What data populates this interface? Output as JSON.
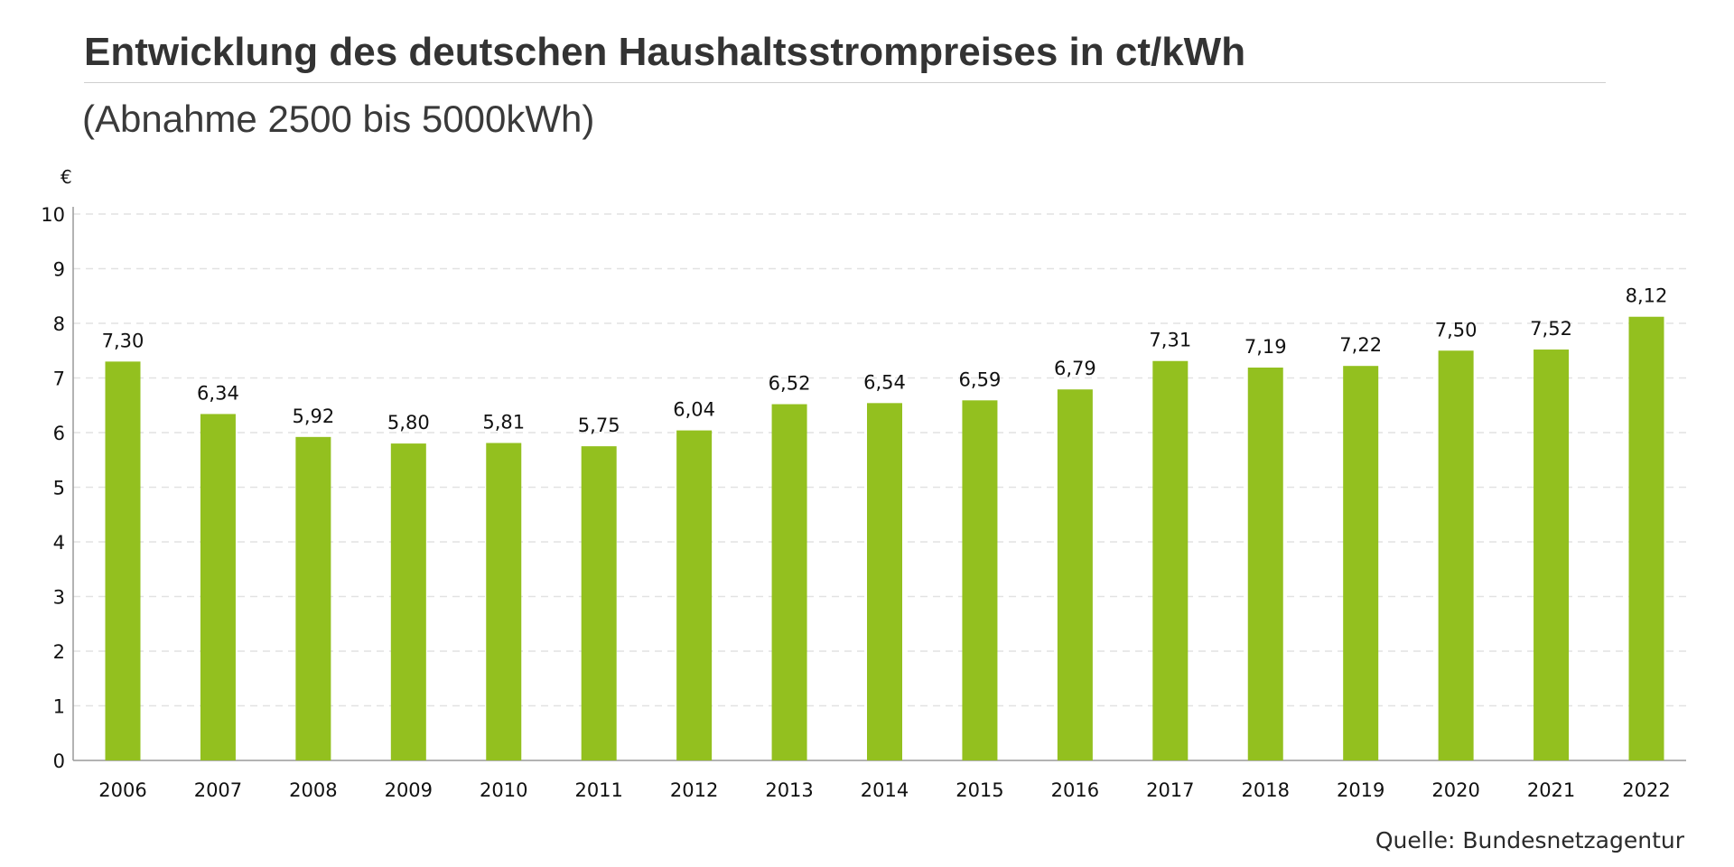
{
  "header": {
    "title": "Entwicklung des deutschen Haushaltsstrompreises in ct/kWh",
    "subtitle": "(Abnahme 2500 bis 5000kWh)"
  },
  "footer": {
    "source": "Quelle: Bundesnetzagentur"
  },
  "chart_data": {
    "type": "bar",
    "title": "Entwicklung des deutschen Haushaltsstrompreises in ct/kWh",
    "subtitle": "(Abnahme 2500 bis 5000kWh)",
    "y_unit_label": "€",
    "categories": [
      "2006",
      "2007",
      "2008",
      "2009",
      "2010",
      "2011",
      "2012",
      "2013",
      "2014",
      "2015",
      "2016",
      "2017",
      "2018",
      "2019",
      "2020",
      "2021",
      "2022"
    ],
    "values": [
      7.3,
      6.34,
      5.92,
      5.8,
      5.81,
      5.75,
      6.04,
      6.52,
      6.54,
      6.59,
      6.79,
      7.31,
      7.19,
      7.22,
      7.5,
      7.52,
      8.12
    ],
    "value_labels": [
      "7,30",
      "6,34",
      "5,92",
      "5,80",
      "5,81",
      "5,75",
      "6,04",
      "6,52",
      "6,54",
      "6,59",
      "6,79",
      "7,31",
      "7,19",
      "7,22",
      "7,50",
      "7,52",
      "8,12"
    ],
    "y_ticks": [
      "0",
      "1",
      "2",
      "3",
      "4",
      "5",
      "6",
      "7",
      "8",
      "9",
      "10"
    ],
    "ylim": [
      0,
      10
    ],
    "grid": true,
    "grid_style": "dashed",
    "legend": "none",
    "bar_color": "#93c01f",
    "grid_color": "#e2e2e2",
    "axis_color": "#9a9a9a",
    "source": "Quelle: Bundesnetzagentur"
  }
}
